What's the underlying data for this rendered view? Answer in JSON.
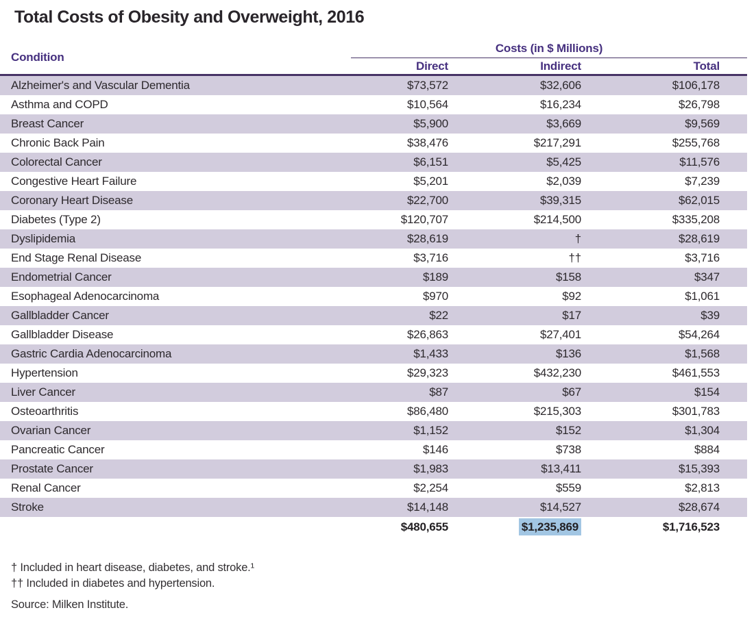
{
  "title": "Total Costs of Obesity and Overweight, 2016",
  "table": {
    "condition_header": "Condition",
    "costs_group_header": "Costs (in $ Millions)",
    "columns": [
      "Direct",
      "Indirect",
      "Total"
    ],
    "rows": [
      {
        "condition": "Alzheimer's and Vascular Dementia",
        "direct": "$73,572",
        "indirect": "$32,606",
        "total": "$106,178"
      },
      {
        "condition": "Asthma and COPD",
        "direct": "$10,564",
        "indirect": "$16,234",
        "total": "$26,798"
      },
      {
        "condition": "Breast Cancer",
        "direct": "$5,900",
        "indirect": "$3,669",
        "total": "$9,569"
      },
      {
        "condition": "Chronic Back Pain",
        "direct": "$38,476",
        "indirect": "$217,291",
        "total": "$255,768"
      },
      {
        "condition": "Colorectal Cancer",
        "direct": "$6,151",
        "indirect": "$5,425",
        "total": "$11,576"
      },
      {
        "condition": "Congestive Heart Failure",
        "direct": "$5,201",
        "indirect": "$2,039",
        "total": "$7,239"
      },
      {
        "condition": "Coronary Heart Disease",
        "direct": "$22,700",
        "indirect": "$39,315",
        "total": "$62,015"
      },
      {
        "condition": "Diabetes (Type 2)",
        "direct": "$120,707",
        "indirect": "$214,500",
        "total": "$335,208"
      },
      {
        "condition": "Dyslipidemia",
        "direct": "$28,619",
        "indirect": "†",
        "total": "$28,619"
      },
      {
        "condition": "End Stage Renal Disease",
        "direct": "$3,716",
        "indirect": "††",
        "total": "$3,716"
      },
      {
        "condition": "Endometrial Cancer",
        "direct": "$189",
        "indirect": "$158",
        "total": "$347"
      },
      {
        "condition": "Esophageal Adenocarcinoma",
        "direct": "$970",
        "indirect": "$92",
        "total": "$1,061"
      },
      {
        "condition": "Gallbladder Cancer",
        "direct": "$22",
        "indirect": "$17",
        "total": "$39"
      },
      {
        "condition": "Gallbladder Disease",
        "direct": "$26,863",
        "indirect": "$27,401",
        "total": "$54,264"
      },
      {
        "condition": "Gastric Cardia Adenocarcinoma",
        "direct": "$1,433",
        "indirect": "$136",
        "total": "$1,568"
      },
      {
        "condition": "Hypertension",
        "direct": "$29,323",
        "indirect": "$432,230",
        "total": "$461,553"
      },
      {
        "condition": "Liver Cancer",
        "direct": "$87",
        "indirect": "$67",
        "total": "$154"
      },
      {
        "condition": "Osteoarthritis",
        "direct": "$86,480",
        "indirect": "$215,303",
        "total": "$301,783"
      },
      {
        "condition": "Ovarian Cancer",
        "direct": "$1,152",
        "indirect": "$152",
        "total": "$1,304"
      },
      {
        "condition": "Pancreatic Cancer",
        "direct": "$146",
        "indirect": "$738",
        "total": "$884"
      },
      {
        "condition": "Prostate Cancer",
        "direct": "$1,983",
        "indirect": "$13,411",
        "total": "$15,393"
      },
      {
        "condition": "Renal Cancer",
        "direct": "$2,254",
        "indirect": "$559",
        "total": "$2,813"
      },
      {
        "condition": "Stroke",
        "direct": "$14,148",
        "indirect": "$14,527",
        "total": "$28,674"
      }
    ],
    "totals": {
      "direct": "$480,655",
      "indirect": "$1,235,869",
      "total": "$1,716,523",
      "indirect_highlighted": true
    }
  },
  "chart_data": {
    "type": "table",
    "title": "Total Costs of Obesity and Overweight, 2016",
    "column_group": "Costs (in $ Millions)",
    "columns": [
      "Condition",
      "Direct",
      "Indirect",
      "Total"
    ],
    "series": [
      {
        "name": "Direct",
        "values": [
          73572,
          10564,
          5900,
          38476,
          6151,
          5201,
          22700,
          120707,
          28619,
          3716,
          189,
          970,
          22,
          26863,
          1433,
          29323,
          87,
          86480,
          1152,
          146,
          1983,
          2254,
          14148
        ]
      },
      {
        "name": "Indirect",
        "values": [
          32606,
          16234,
          3669,
          217291,
          5425,
          2039,
          39315,
          214500,
          null,
          null,
          158,
          92,
          17,
          27401,
          136,
          432230,
          67,
          215303,
          152,
          738,
          13411,
          559,
          14527
        ]
      },
      {
        "name": "Total",
        "values": [
          106178,
          26798,
          9569,
          255768,
          11576,
          7239,
          62015,
          335208,
          28619,
          3716,
          347,
          1061,
          39,
          54264,
          1568,
          461553,
          154,
          301783,
          1304,
          884,
          15393,
          2813,
          28674
        ]
      }
    ],
    "categories": [
      "Alzheimer's and Vascular Dementia",
      "Asthma and COPD",
      "Breast Cancer",
      "Chronic Back Pain",
      "Colorectal Cancer",
      "Congestive Heart Failure",
      "Coronary Heart Disease",
      "Diabetes (Type 2)",
      "Dyslipidemia",
      "End Stage Renal Disease",
      "Endometrial Cancer",
      "Esophageal Adenocarcinoma",
      "Gallbladder Cancer",
      "Gallbladder Disease",
      "Gastric Cardia Adenocarcinoma",
      "Hypertension",
      "Liver Cancer",
      "Osteoarthritis",
      "Ovarian Cancer",
      "Pancreatic Cancer",
      "Prostate Cancer",
      "Renal Cancer",
      "Stroke"
    ],
    "totals_row": {
      "Direct": 480655,
      "Indirect": 1235869,
      "Total": 1716523
    },
    "missing_value_markers": {
      "dagger": "†",
      "double_dagger": "††"
    }
  },
  "footnotes": [
    "† Included in heart disease, diabetes, and stroke.¹",
    "†† Included in diabetes and hypertension."
  ],
  "source": "Source: Milken Institute.",
  "colors": {
    "accent_purple": "#46307f",
    "rule_purple": "#473366",
    "row_stripe": "#d2ccdd",
    "highlight_blue": "#a2c6e3",
    "text": "#2d292d"
  }
}
